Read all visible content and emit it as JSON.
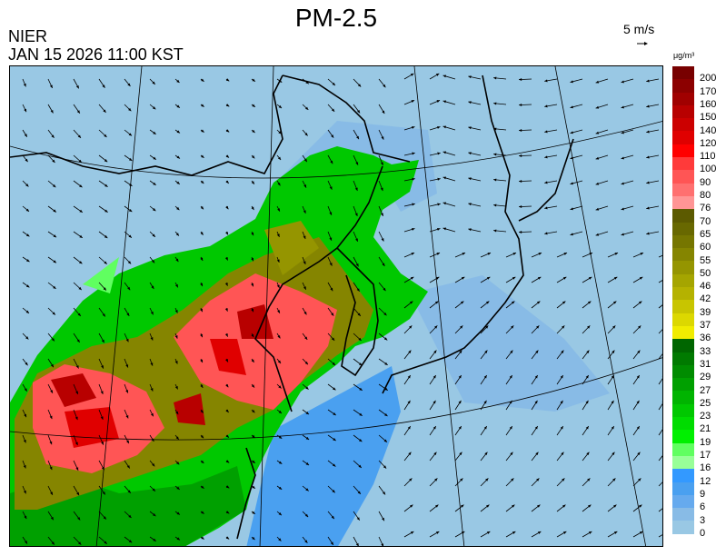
{
  "header": {
    "title": "PM-2.5",
    "organization": "NIER",
    "timestamp": "JAN 15 2026 11:00 KST",
    "wind_scale_label": "5 m/s",
    "unit": "μg/m³"
  },
  "legend": {
    "labels": [
      "200",
      "170",
      "160",
      "150",
      "140",
      "120",
      "110",
      "100",
      "90",
      "80",
      "76",
      "70",
      "65",
      "60",
      "55",
      "50",
      "46",
      "42",
      "39",
      "37",
      "36",
      "33",
      "31",
      "29",
      "27",
      "25",
      "23",
      "21",
      "19",
      "17",
      "16",
      "12",
      "9",
      "6",
      "3",
      "0"
    ],
    "colors": [
      "#780000",
      "#8c0000",
      "#a00000",
      "#b80000",
      "#cc0000",
      "#e00000",
      "#ff0000",
      "#ff3a3a",
      "#ff5555",
      "#ff7070",
      "#ff9595",
      "#5c5a00",
      "#686800",
      "#767600",
      "#858500",
      "#959500",
      "#a5a500",
      "#b5b200",
      "#c8c500",
      "#dcd800",
      "#f0ec00",
      "#006600",
      "#007a00",
      "#008c00",
      "#00a000",
      "#00b400",
      "#00c800",
      "#00dc00",
      "#00f000",
      "#60ff60",
      "#98ff98",
      "#3399ff",
      "#4aa0f0",
      "#66aaee",
      "#88bbe6",
      "#99c8e4"
    ]
  },
  "map": {
    "background_color": "#99c8e4",
    "coast_color": "#000000",
    "graticule_color": "#000000",
    "wind_vectors": "arrows"
  }
}
